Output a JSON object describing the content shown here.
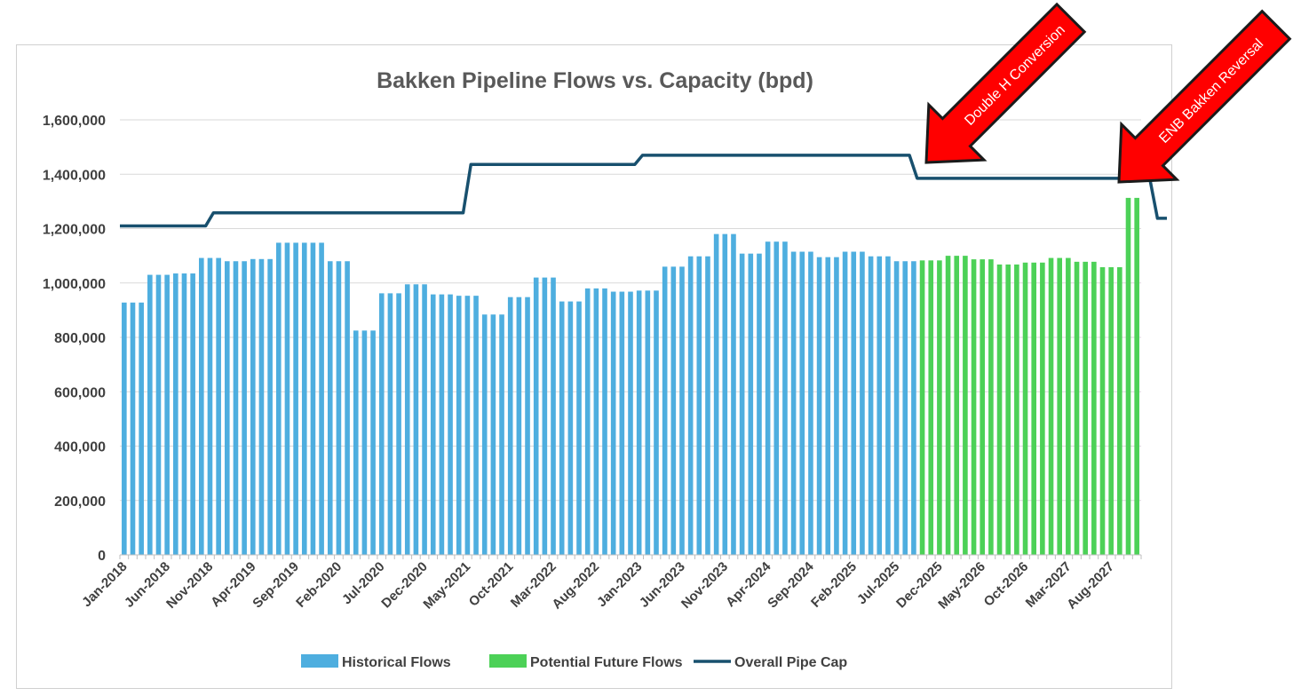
{
  "chart_data": {
    "type": "bar",
    "title": "Bakken Pipeline Flows vs. Capacity (bpd)",
    "xlabel": "",
    "ylabel": "",
    "ylim": [
      0,
      1600000
    ],
    "y_ticks": [
      0,
      200000,
      400000,
      600000,
      800000,
      1000000,
      1200000,
      1400000,
      1600000
    ],
    "y_tick_labels": [
      "0",
      "200,000",
      "400,000",
      "600,000",
      "800,000",
      "1,000,000",
      "1,200,000",
      "1,400,000",
      "1,600,000"
    ],
    "x_start": "Jan-2018",
    "x_tick_labels": [
      "Jan-2018",
      "Jun-2018",
      "Nov-2018",
      "Apr-2019",
      "Sep-2019",
      "Feb-2020",
      "Jul-2020",
      "Dec-2020",
      "May-2021",
      "Oct-2021",
      "Mar-2022",
      "Aug-2022",
      "Jan-2023",
      "Jun-2023",
      "Nov-2023",
      "Apr-2024",
      "Sep-2024",
      "Feb-2025",
      "Jul-2025",
      "Dec-2025",
      "May-2026",
      "Oct-2026",
      "Mar-2027",
      "Aug-2027"
    ],
    "grid": true,
    "legend_position": "bottom",
    "series": [
      {
        "name": "Historical Flows",
        "type": "bar",
        "color": "#4EAEDF",
        "values": [
          928000,
          928000,
          928000,
          1030000,
          1030000,
          1030000,
          1035000,
          1035000,
          1035000,
          1092000,
          1092000,
          1092000,
          1080000,
          1080000,
          1080000,
          1088000,
          1088000,
          1088000,
          1148000,
          1148000,
          1148000,
          1148000,
          1148000,
          1148000,
          1080000,
          1080000,
          1080000,
          825000,
          825000,
          825000,
          962000,
          962000,
          962000,
          995000,
          995000,
          995000,
          958000,
          958000,
          958000,
          953000,
          953000,
          953000,
          884000,
          884000,
          884000,
          948000,
          948000,
          948000,
          1020000,
          1020000,
          1020000,
          932000,
          932000,
          932000,
          980000,
          980000,
          980000,
          968000,
          968000,
          968000,
          972000,
          972000,
          972000,
          1060000,
          1060000,
          1060000,
          1098000,
          1098000,
          1098000,
          1180000,
          1180000,
          1180000,
          1108000,
          1108000,
          1108000,
          1152000,
          1152000,
          1152000,
          1115000,
          1115000,
          1115000,
          1095000,
          1095000,
          1095000,
          1115000,
          1115000,
          1115000,
          1098000,
          1098000,
          1098000,
          1080000,
          1080000,
          1080000
        ]
      },
      {
        "name": "Potential Future Flows",
        "type": "bar",
        "color": "#4CD157",
        "values": [
          1083000,
          1083000,
          1083000,
          1100000,
          1100000,
          1100000,
          1087000,
          1087000,
          1087000,
          1068000,
          1068000,
          1068000,
          1075000,
          1075000,
          1075000,
          1092000,
          1092000,
          1092000,
          1078000,
          1078000,
          1078000,
          1058000,
          1058000,
          1058000,
          1313000,
          1313000
        ]
      },
      {
        "name": "Overall Pipe Cap",
        "type": "line",
        "color": "#18506E",
        "values": [
          1210000,
          1210000,
          1210000,
          1210000,
          1210000,
          1210000,
          1210000,
          1210000,
          1210000,
          1210000,
          1258000,
          1258000,
          1258000,
          1258000,
          1258000,
          1258000,
          1258000,
          1258000,
          1258000,
          1258000,
          1258000,
          1258000,
          1258000,
          1258000,
          1258000,
          1258000,
          1258000,
          1258000,
          1258000,
          1258000,
          1258000,
          1258000,
          1258000,
          1258000,
          1258000,
          1258000,
          1258000,
          1258000,
          1258000,
          1258000,
          1436000,
          1436000,
          1436000,
          1436000,
          1436000,
          1436000,
          1436000,
          1436000,
          1436000,
          1436000,
          1436000,
          1436000,
          1436000,
          1436000,
          1436000,
          1436000,
          1436000,
          1436000,
          1436000,
          1436000,
          1470000,
          1470000,
          1470000,
          1470000,
          1470000,
          1470000,
          1470000,
          1470000,
          1470000,
          1470000,
          1470000,
          1470000,
          1470000,
          1470000,
          1470000,
          1470000,
          1470000,
          1470000,
          1470000,
          1470000,
          1470000,
          1470000,
          1470000,
          1470000,
          1470000,
          1470000,
          1470000,
          1470000,
          1470000,
          1470000,
          1470000,
          1470000,
          1385000,
          1385000,
          1385000,
          1385000,
          1385000,
          1385000,
          1385000,
          1385000,
          1385000,
          1385000,
          1385000,
          1385000,
          1385000,
          1385000,
          1385000,
          1385000,
          1385000,
          1385000,
          1385000,
          1385000,
          1385000,
          1385000,
          1385000,
          1385000,
          1385000,
          1385000,
          1385000,
          1385000,
          1238000,
          1238000
        ]
      }
    ],
    "annotations": [
      {
        "text": "Double H Conversion",
        "color": "#FF0000",
        "at": "Dec-2025"
      },
      {
        "text": "ENB Bakken Reversal",
        "color": "#FF0000",
        "at": "Jan-2028"
      }
    ]
  }
}
